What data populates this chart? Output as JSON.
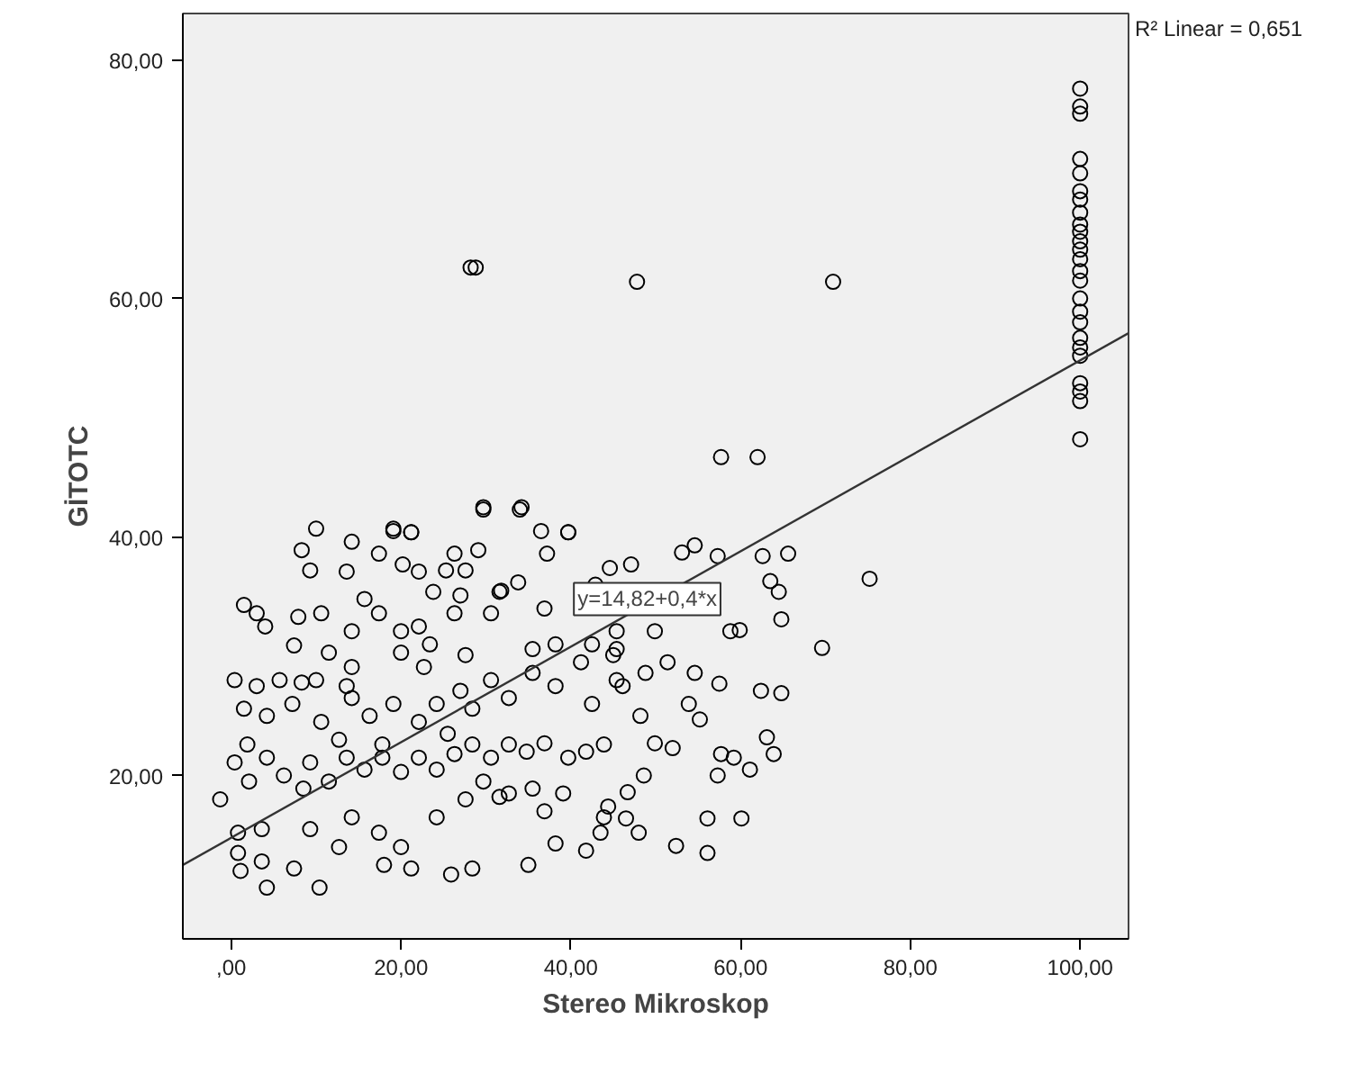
{
  "chart_data": {
    "type": "scatter",
    "xlabel": "Stereo Mikroskop",
    "ylabel": "GİTOTC",
    "xlim": [
      -5.7,
      105.7
    ],
    "ylim": [
      6.3,
      83.9
    ],
    "xticks": [
      {
        "value": 0,
        "label": ",00"
      },
      {
        "value": 20,
        "label": "20,00"
      },
      {
        "value": 40,
        "label": "40,00"
      },
      {
        "value": 60,
        "label": "60,00"
      },
      {
        "value": 80,
        "label": "80,00"
      },
      {
        "value": 100,
        "label": "100,00"
      }
    ],
    "yticks": [
      {
        "value": 20,
        "label": "20,00"
      },
      {
        "value": 40,
        "label": "40,00"
      },
      {
        "value": 60,
        "label": "60,00"
      },
      {
        "value": 80,
        "label": "80,00"
      }
    ],
    "grid": false,
    "marker": "circle",
    "annotations": [
      "R² Linear = 0,651",
      {
        "text": "y=14,82+0,4*x",
        "x": 49,
        "y": 34.8
      }
    ],
    "series": [
      {
        "color": "#000000",
        "x": [
          100,
          100,
          100,
          100,
          100,
          100,
          100,
          100,
          100,
          100,
          100,
          100,
          100,
          100,
          100,
          100,
          100,
          100,
          100,
          100,
          100,
          100,
          100,
          100,
          100,
          28.2,
          28.8,
          47.8,
          70.9,
          29.7,
          34.2,
          36.5,
          57.7,
          62.0,
          19.1,
          21.2,
          39.7,
          75.2,
          69.6,
          65.6,
          62.6,
          64.8,
          64.5,
          63.5,
          57.5,
          62.4,
          64.8,
          63.1,
          63.9,
          56.1,
          60.1,
          52.4,
          56.1,
          48.0,
          46.5,
          57.7,
          59.2,
          61.1,
          57.3,
          55.2,
          53.9,
          54.6,
          54.6,
          53.1,
          57.3,
          58.8,
          59.9,
          49.9,
          51.4,
          48.8,
          52.0,
          49.9,
          46.7,
          44.4,
          43.5,
          47.1,
          45.4,
          45.0,
          46.1,
          48.2,
          48.6,
          4.2,
          10.4,
          1.1,
          7.4,
          0.8,
          3.6,
          12.7,
          18.0,
          21.2,
          25.9,
          28.4,
          35.0,
          38.2,
          41.8,
          -1.3,
          0.8,
          3.6,
          9.3,
          14.2,
          17.4,
          20.0,
          24.2,
          27.6,
          31.6,
          36.9,
          39.1,
          43.9,
          0.4,
          2.1,
          1.9,
          4.2,
          6.2,
          8.5,
          9.3,
          11.5,
          13.6,
          15.7,
          17.8,
          20.0,
          22.1,
          24.2,
          26.3,
          28.4,
          30.6,
          32.7,
          34.8,
          36.9,
          39.7,
          41.8,
          43.9,
          32.7,
          35.5,
          29.7,
          0.4,
          3.0,
          5.7,
          8.3,
          10.0,
          1.5,
          4.2,
          7.2,
          10.6,
          13.6,
          14.2,
          16.3,
          19.1,
          22.1,
          24.2,
          27.0,
          28.4,
          30.6,
          32.7,
          35.5,
          38.2,
          41.2,
          42.5,
          45.4,
          12.7,
          17.8,
          25.5,
          1.5,
          3.0,
          4.0,
          7.9,
          7.4,
          10.6,
          11.5,
          14.2,
          15.7,
          17.4,
          20.0,
          20.0,
          22.1,
          23.4,
          26.3,
          27.6,
          30.6,
          31.6,
          33.8,
          36.9,
          35.5,
          38.2,
          42.5,
          45.4,
          14.2,
          22.7,
          10.0,
          8.3,
          9.3,
          13.6,
          14.2,
          17.4,
          19.1,
          21.2,
          20.2,
          22.1,
          25.3,
          26.3,
          29.1,
          27.6,
          29.7,
          34.0,
          37.2,
          39.7,
          23.8,
          27.0,
          31.8,
          42.9,
          44.6
        ],
        "values": [
          77.6,
          76.1,
          75.5,
          71.7,
          70.5,
          69.0,
          68.3,
          67.2,
          66.2,
          65.6,
          64.8,
          64.1,
          63.3,
          62.3,
          61.5,
          60.0,
          58.9,
          58.0,
          56.7,
          55.9,
          55.2,
          52.9,
          52.2,
          51.4,
          48.2,
          62.6,
          62.6,
          61.4,
          61.4,
          42.5,
          42.5,
          40.5,
          46.7,
          46.7,
          40.5,
          40.4,
          40.4,
          36.5,
          30.7,
          38.6,
          38.4,
          33.1,
          35.4,
          36.3,
          27.7,
          27.1,
          26.9,
          23.2,
          21.8,
          16.4,
          16.4,
          14.1,
          13.5,
          15.2,
          16.4,
          21.8,
          21.5,
          20.5,
          20.0,
          24.7,
          26.0,
          28.6,
          39.3,
          38.7,
          38.4,
          32.1,
          32.2,
          32.1,
          29.5,
          28.6,
          22.3,
          22.7,
          18.6,
          17.4,
          15.2,
          37.7,
          32.1,
          30.1,
          27.5,
          25.0,
          20.0,
          10.6,
          10.6,
          12.0,
          12.2,
          13.5,
          12.8,
          14.0,
          12.5,
          12.2,
          11.7,
          12.2,
          12.5,
          14.3,
          13.7,
          18.0,
          15.2,
          15.5,
          15.5,
          16.5,
          15.2,
          14.0,
          16.5,
          18.0,
          18.2,
          17.0,
          18.5,
          16.5,
          21.1,
          19.5,
          22.6,
          21.5,
          20.0,
          18.9,
          21.1,
          19.5,
          21.5,
          20.5,
          21.5,
          20.3,
          21.5,
          20.5,
          21.8,
          22.6,
          21.5,
          22.6,
          22.0,
          22.7,
          21.5,
          22.0,
          22.6,
          18.5,
          18.9,
          19.5,
          28.0,
          27.5,
          28.0,
          27.8,
          28.0,
          25.6,
          25.0,
          26.0,
          24.5,
          27.5,
          26.5,
          25.0,
          26.0,
          24.5,
          26.0,
          27.1,
          25.6,
          28.0,
          26.5,
          28.6,
          27.5,
          29.5,
          26.0,
          28.0,
          23.0,
          22.6,
          23.5,
          34.3,
          33.6,
          32.5,
          33.3,
          30.9,
          33.6,
          30.3,
          32.1,
          34.8,
          33.6,
          32.1,
          30.3,
          32.5,
          31.0,
          33.6,
          30.1,
          33.6,
          35.4,
          36.2,
          34.0,
          30.6,
          31.0,
          31.0,
          30.6,
          29.1,
          29.1,
          40.7,
          38.9,
          37.2,
          37.1,
          39.6,
          38.6,
          40.7,
          40.4,
          37.7,
          37.1,
          37.2,
          38.6,
          38.9,
          37.2,
          42.3,
          42.3,
          38.6,
          40.4,
          35.4,
          35.1,
          35.5,
          36.0,
          37.4
        ]
      },
      {
        "type": "line",
        "color": "#333333",
        "marker": "none",
        "x": [
          -5.7,
          105.7
        ],
        "values": [
          12.5,
          57.1
        ]
      }
    ]
  }
}
